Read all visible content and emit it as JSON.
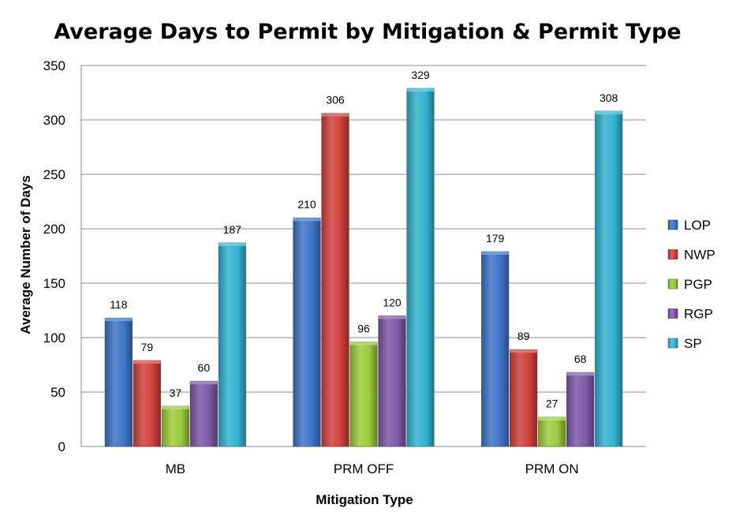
{
  "chart_data": {
    "type": "bar",
    "title": "Average Days to Permit by Mitigation & Permit Type",
    "xlabel": "Mitigation Type",
    "ylabel": "Average Number of Days",
    "categories": [
      "MB",
      "PRM OFF",
      "PRM ON"
    ],
    "ylim": [
      0,
      350
    ],
    "yticks": [
      0,
      50,
      100,
      150,
      200,
      250,
      300,
      350
    ],
    "grid": true,
    "legend_position": "right",
    "series": [
      {
        "name": "LOP",
        "color": "#3f75c8",
        "values": [
          118,
          210,
          179
        ]
      },
      {
        "name": "NWP",
        "color": "#d0403d",
        "values": [
          79,
          306,
          89
        ]
      },
      {
        "name": "PGP",
        "color": "#9ccb3c",
        "values": [
          37,
          96,
          27
        ]
      },
      {
        "name": "RGP",
        "color": "#7e5aa8",
        "values": [
          60,
          120,
          68
        ]
      },
      {
        "name": "SP",
        "color": "#34b3d0",
        "values": [
          187,
          329,
          308
        ]
      }
    ]
  }
}
